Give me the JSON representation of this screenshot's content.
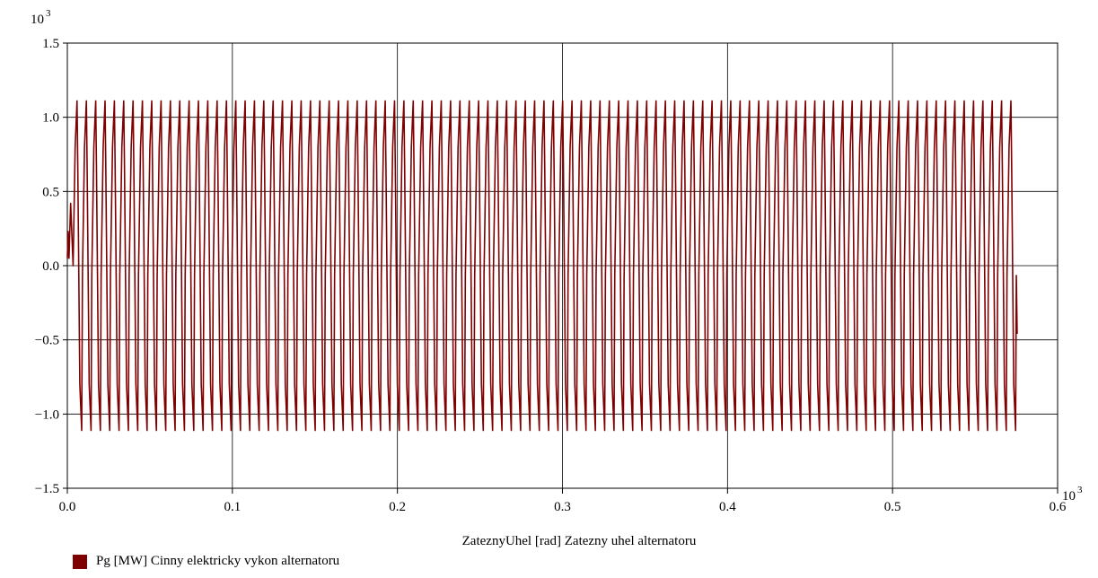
{
  "chart_data": {
    "type": "line",
    "xlabel": "ZateznyUhel [rad] Zatezny uhel alternatoru",
    "x_exponent": "10",
    "x_exponent_power": "3",
    "y_exponent": "10",
    "y_exponent_power": "3",
    "xlim": [
      0,
      0.6
    ],
    "ylim": [
      -1.5,
      1.5
    ],
    "x_ticks": [
      0.0,
      0.1,
      0.2,
      0.3,
      0.4,
      0.5,
      0.6
    ],
    "x_tick_labels": [
      "0.0",
      "0.1",
      "0.2",
      "0.3",
      "0.4",
      "0.5",
      "0.6"
    ],
    "y_ticks": [
      1.5,
      1.0,
      0.5,
      0.0,
      -0.5,
      -1.0,
      -1.5
    ],
    "y_tick_labels": [
      "1.5",
      "1.0",
      "0.5",
      "0.0",
      "−0.5",
      "−1.0",
      "−1.5"
    ],
    "grid": true,
    "legend_position": "bottom-left",
    "series": [
      {
        "name": "Pg [MW] Cinny elektricky vykon alternatoru",
        "color": "#7f0000",
        "waveform": {
          "x_start": 0.0,
          "x_end": 0.575,
          "amplitude": 1.11,
          "peak_count": 101,
          "final_value": -0.46,
          "initial_points": [
            [
              0.0,
              0.05
            ],
            [
              0.0005,
              0.23
            ],
            [
              0.001,
              0.05
            ],
            [
              0.0015,
              0.23
            ],
            [
              0.002,
              0.42
            ],
            [
              0.0035,
              0.0
            ]
          ]
        }
      }
    ]
  },
  "colors": {
    "axis": "#000000",
    "grid": "#000000",
    "series": "#7f0000"
  }
}
